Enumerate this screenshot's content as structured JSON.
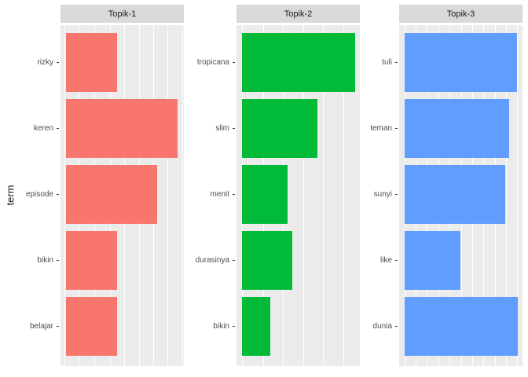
{
  "chart_data": {
    "type": "bar",
    "orientation": "horizontal",
    "title": "",
    "xlabel": "",
    "ylabel": "term",
    "x_axis_tick_labels": "none visible; bar lengths are relative fractions of panel width",
    "legend": "none",
    "grid": "white vertical gridlines on gray panel",
    "facets": [
      {
        "title": "Topik-1",
        "color": "#F8766D",
        "categories": [
          "rizky",
          "keren",
          "episode",
          "bikin",
          "belajar"
        ],
        "values": [
          0.438,
          0.95,
          0.777,
          0.435,
          0.438
        ],
        "gridlines": [
          0.03,
          0.147,
          0.274,
          0.401,
          0.518,
          0.635,
          0.752,
          0.868,
          0.985
        ]
      },
      {
        "title": "Topik-2",
        "color": "#00BA38",
        "categories": [
          "tropicana",
          "slim",
          "menit",
          "durasinya",
          "bikin"
        ],
        "values": [
          0.957,
          0.64,
          0.387,
          0.427,
          0.241
        ],
        "gridlines": [
          0.045,
          0.214,
          0.377,
          0.54,
          0.703,
          0.867
        ]
      },
      {
        "title": "Topik-3",
        "color": "#619CFF",
        "categories": [
          "tuli",
          "teman",
          "sunyi",
          "like",
          "dunia"
        ],
        "values": [
          0.953,
          0.884,
          0.853,
          0.476,
          0.961
        ],
        "gridlines": [
          0.042,
          0.134,
          0.225,
          0.317,
          0.408,
          0.5,
          0.591,
          0.683,
          0.774,
          0.866,
          0.957
        ]
      }
    ]
  },
  "theme": {
    "panel_background": "#EBEBEB",
    "strip_background": "#D9D9D9",
    "gridline_color": "#FFFFFF",
    "axis_text_color": "#4D4D4D",
    "strip_text_color": "#1A1A1A",
    "tick_mark_color": "#333333",
    "figure_background": "#FFFFFF"
  }
}
